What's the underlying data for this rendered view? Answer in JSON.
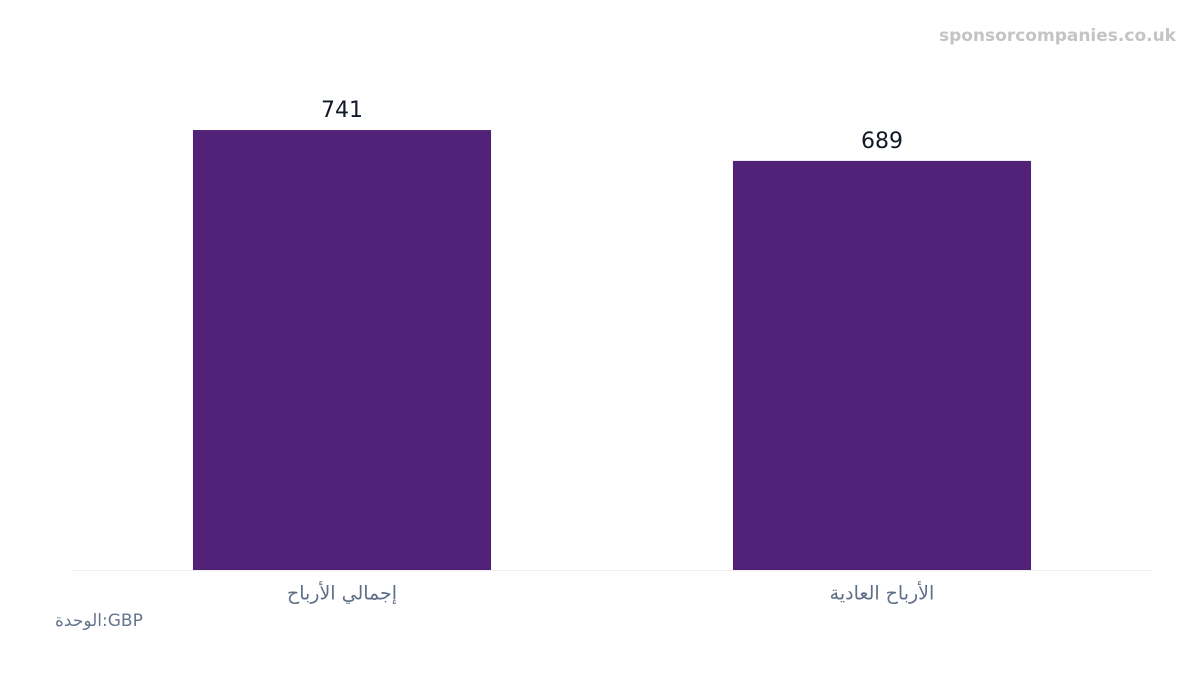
{
  "chart_data": {
    "type": "bar",
    "watermark": "sponsorcompanies.co.uk",
    "unit_label": "الوحدة:GBP",
    "categories": [
      "إجمالي الأرباح",
      "الأرباح العادية"
    ],
    "values": [
      741,
      689
    ],
    "color": "#522178",
    "ylim": [
      0,
      800
    ]
  }
}
